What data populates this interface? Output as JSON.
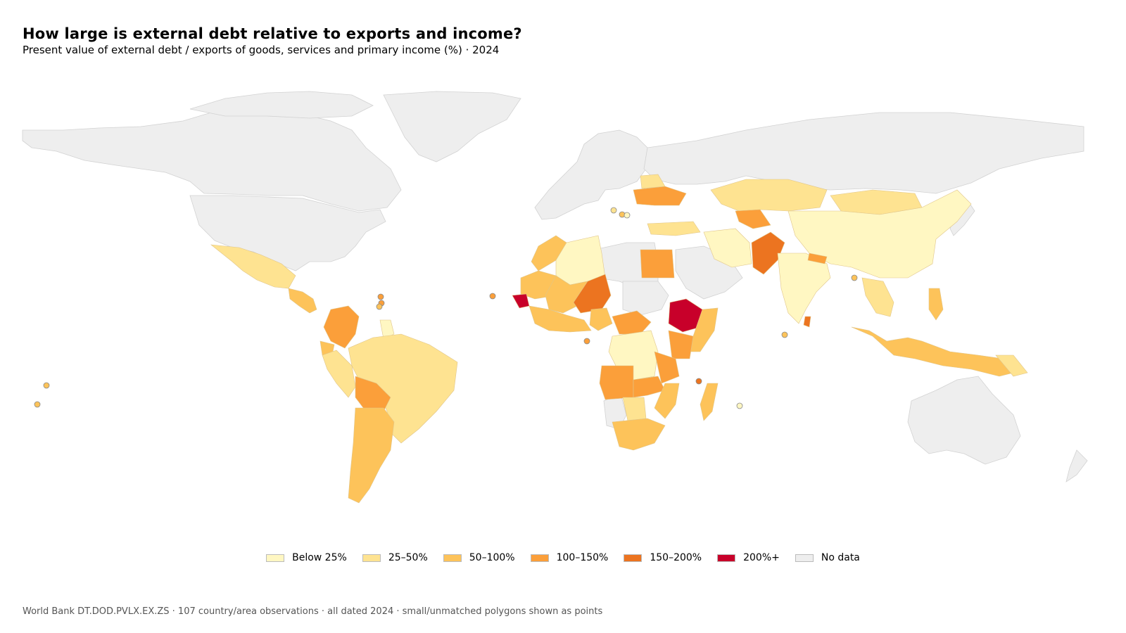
{
  "title": "How large is external debt relative to exports and income?",
  "subtitle": "Present value of external debt / exports of goods, services and primary income (%) · 2024",
  "legend": [
    {
      "label": "Below 25%",
      "color": "#fff7c2"
    },
    {
      "label": "25–50%",
      "color": "#fee391"
    },
    {
      "label": "50–100%",
      "color": "#fdc35a"
    },
    {
      "label": "100–150%",
      "color": "#fb9f3a"
    },
    {
      "label": "150–200%",
      "color": "#ec7420"
    },
    {
      "label": "200%+",
      "color": "#c8002a"
    },
    {
      "label": "No data",
      "color": "#eeeeee"
    }
  ],
  "footer": "World Bank DT.DOD.PVLX.EX.ZS · 107 country/area observations · all dated 2024 · small/unmatched polygons shown as points",
  "colors": {
    "border": "#d2d2d2",
    "background": "#ffffff"
  }
}
